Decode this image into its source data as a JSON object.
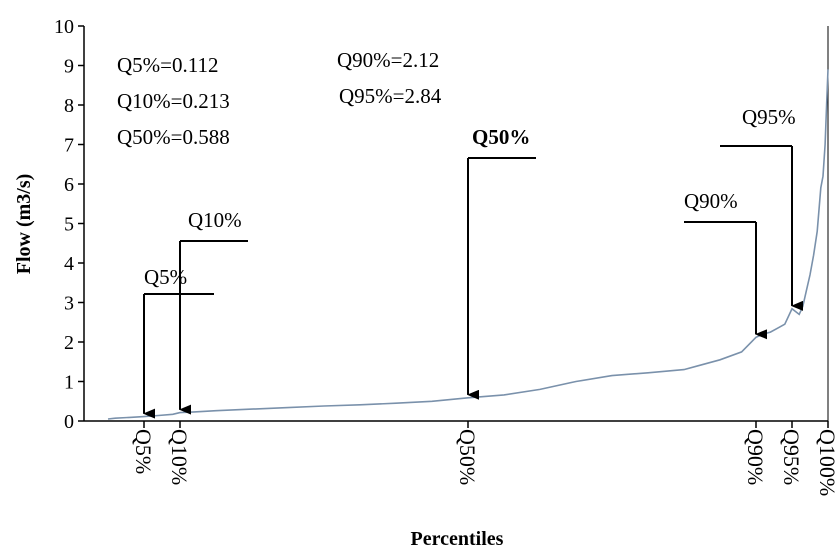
{
  "chart_data": {
    "type": "line",
    "xlabel": "Percentiles",
    "ylabel": "Flow (m3/s)",
    "ylim": [
      0,
      10
    ],
    "y_ticks": [
      0,
      1,
      2,
      3,
      4,
      5,
      6,
      7,
      8,
      9,
      10
    ],
    "grid": false,
    "x_category_labels": [
      {
        "label": "Q5%",
        "x": 5
      },
      {
        "label": "Q10%",
        "x": 10
      },
      {
        "label": "Q50%",
        "x": 50
      },
      {
        "label": "Q90%",
        "x": 90
      },
      {
        "label": "Q95%",
        "x": 95
      },
      {
        "label": "Q100%",
        "x": 100
      }
    ],
    "series": [
      {
        "color": "#7a91ab",
        "x": [
          0,
          1,
          3,
          5,
          7,
          9,
          10,
          12,
          15,
          20,
          25,
          30,
          35,
          40,
          45,
          50,
          55,
          60,
          65,
          70,
          75,
          80,
          82,
          85,
          88,
          90,
          91,
          92,
          93,
          94,
          95,
          96,
          96.5,
          97,
          97.5,
          98,
          98.5,
          99,
          99.3,
          99.6,
          99.8,
          100
        ],
        "y": [
          0.05,
          0.07,
          0.09,
          0.112,
          0.14,
          0.17,
          0.213,
          0.23,
          0.26,
          0.3,
          0.34,
          0.38,
          0.41,
          0.45,
          0.5,
          0.588,
          0.66,
          0.8,
          1.0,
          1.15,
          1.22,
          1.3,
          1.4,
          1.55,
          1.75,
          2.12,
          2.2,
          2.25,
          2.35,
          2.45,
          2.84,
          2.7,
          2.9,
          3.3,
          3.7,
          4.2,
          4.8,
          5.9,
          6.2,
          7.0,
          8.0,
          8.9
        ]
      }
    ],
    "stat_text": {
      "q5": "Q5%=0.112",
      "q10": "Q10%=0.213",
      "q50": "Q50%=0.588",
      "q90": "Q90%=2.12",
      "q95": "Q95%=2.84"
    },
    "markers": [
      {
        "label": "Q5%",
        "x": 5,
        "y": 0.112
      },
      {
        "label": "Q10%",
        "x": 10,
        "y": 0.213
      },
      {
        "label": "Q50%",
        "x": 50,
        "y": 0.588
      },
      {
        "label": "Q90%",
        "x": 90,
        "y": 2.12
      },
      {
        "label": "Q95%",
        "x": 95,
        "y": 2.84
      }
    ]
  }
}
